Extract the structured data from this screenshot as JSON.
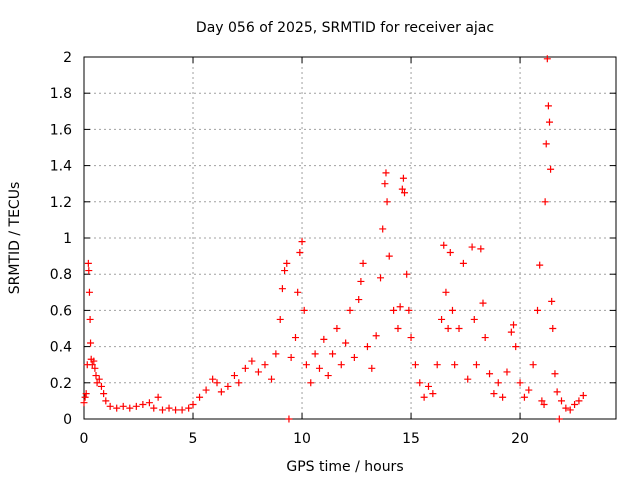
{
  "chart_data": {
    "type": "scatter",
    "title": "Day 056 of 2025, SRMTID for receiver ajac",
    "xlabel": "GPS time / hours",
    "ylabel": "SRMTID / TECUs",
    "xlim": [
      0,
      24.4
    ],
    "ylim": [
      0,
      2
    ],
    "x_ticks": [
      0,
      5,
      10,
      15,
      20
    ],
    "x_tick_labels": [
      "0",
      "5",
      "10",
      "15",
      "20"
    ],
    "y_ticks": [
      0,
      0.2,
      0.4,
      0.6,
      0.8,
      1,
      1.2,
      1.4,
      1.6,
      1.8,
      2
    ],
    "y_tick_labels": [
      "0",
      "0.2",
      "0.4",
      "0.6",
      "0.8",
      "1",
      "1.2",
      "1.4",
      "1.6",
      "1.8",
      "2"
    ],
    "grid": true,
    "marker": "+",
    "series": [
      {
        "name": "SRMTID",
        "color": "#ff0000",
        "points": [
          [
            0.0,
            0.09
          ],
          [
            0.05,
            0.12
          ],
          [
            0.1,
            0.14
          ],
          [
            0.15,
            0.3
          ],
          [
            0.2,
            0.86
          ],
          [
            0.22,
            0.82
          ],
          [
            0.25,
            0.7
          ],
          [
            0.28,
            0.55
          ],
          [
            0.3,
            0.42
          ],
          [
            0.33,
            0.33
          ],
          [
            0.38,
            0.3
          ],
          [
            0.45,
            0.32
          ],
          [
            0.5,
            0.28
          ],
          [
            0.55,
            0.24
          ],
          [
            0.6,
            0.2
          ],
          [
            0.7,
            0.22
          ],
          [
            0.8,
            0.18
          ],
          [
            0.9,
            0.14
          ],
          [
            1.0,
            0.1
          ],
          [
            1.2,
            0.07
          ],
          [
            1.5,
            0.06
          ],
          [
            1.8,
            0.07
          ],
          [
            2.1,
            0.06
          ],
          [
            2.4,
            0.07
          ],
          [
            2.7,
            0.08
          ],
          [
            3.0,
            0.09
          ],
          [
            3.2,
            0.06
          ],
          [
            3.4,
            0.12
          ],
          [
            3.6,
            0.05
          ],
          [
            3.9,
            0.06
          ],
          [
            4.2,
            0.05
          ],
          [
            4.5,
            0.05
          ],
          [
            4.8,
            0.06
          ],
          [
            5.0,
            0.08
          ],
          [
            5.3,
            0.12
          ],
          [
            5.6,
            0.16
          ],
          [
            5.9,
            0.22
          ],
          [
            6.1,
            0.2
          ],
          [
            6.3,
            0.15
          ],
          [
            6.6,
            0.18
          ],
          [
            6.9,
            0.24
          ],
          [
            7.1,
            0.2
          ],
          [
            7.4,
            0.28
          ],
          [
            7.7,
            0.32
          ],
          [
            8.0,
            0.26
          ],
          [
            8.3,
            0.3
          ],
          [
            8.6,
            0.22
          ],
          [
            8.8,
            0.36
          ],
          [
            9.0,
            0.55
          ],
          [
            9.1,
            0.72
          ],
          [
            9.2,
            0.82
          ],
          [
            9.3,
            0.86
          ],
          [
            9.4,
            0.0
          ],
          [
            9.5,
            0.34
          ],
          [
            9.7,
            0.45
          ],
          [
            9.8,
            0.7
          ],
          [
            9.9,
            0.92
          ],
          [
            10.0,
            0.98
          ],
          [
            10.1,
            0.6
          ],
          [
            10.2,
            0.3
          ],
          [
            10.4,
            0.2
          ],
          [
            10.6,
            0.36
          ],
          [
            10.8,
            0.28
          ],
          [
            11.0,
            0.44
          ],
          [
            11.2,
            0.24
          ],
          [
            11.4,
            0.36
          ],
          [
            11.6,
            0.5
          ],
          [
            11.8,
            0.3
          ],
          [
            12.0,
            0.42
          ],
          [
            12.2,
            0.6
          ],
          [
            12.4,
            0.34
          ],
          [
            12.6,
            0.66
          ],
          [
            12.7,
            0.76
          ],
          [
            12.8,
            0.86
          ],
          [
            13.0,
            0.4
          ],
          [
            13.2,
            0.28
          ],
          [
            13.4,
            0.46
          ],
          [
            13.6,
            0.78
          ],
          [
            13.7,
            1.05
          ],
          [
            13.8,
            1.3
          ],
          [
            13.85,
            1.36
          ],
          [
            13.9,
            1.2
          ],
          [
            14.0,
            0.9
          ],
          [
            14.2,
            0.6
          ],
          [
            14.4,
            0.5
          ],
          [
            14.5,
            0.62
          ],
          [
            14.6,
            1.27
          ],
          [
            14.65,
            1.33
          ],
          [
            14.7,
            1.25
          ],
          [
            14.8,
            0.8
          ],
          [
            14.9,
            0.6
          ],
          [
            15.0,
            0.45
          ],
          [
            15.2,
            0.3
          ],
          [
            15.4,
            0.2
          ],
          [
            15.6,
            0.12
          ],
          [
            15.8,
            0.18
          ],
          [
            16.0,
            0.14
          ],
          [
            16.2,
            0.3
          ],
          [
            16.4,
            0.55
          ],
          [
            16.5,
            0.96
          ],
          [
            16.6,
            0.7
          ],
          [
            16.7,
            0.5
          ],
          [
            16.8,
            0.92
          ],
          [
            16.9,
            0.6
          ],
          [
            17.0,
            0.3
          ],
          [
            17.2,
            0.5
          ],
          [
            17.4,
            0.86
          ],
          [
            17.6,
            0.22
          ],
          [
            17.8,
            0.95
          ],
          [
            17.9,
            0.55
          ],
          [
            18.0,
            0.3
          ],
          [
            18.2,
            0.94
          ],
          [
            18.3,
            0.64
          ],
          [
            18.4,
            0.45
          ],
          [
            18.6,
            0.25
          ],
          [
            18.8,
            0.14
          ],
          [
            19.0,
            0.2
          ],
          [
            19.2,
            0.12
          ],
          [
            19.4,
            0.26
          ],
          [
            19.6,
            0.48
          ],
          [
            19.7,
            0.52
          ],
          [
            19.8,
            0.4
          ],
          [
            20.0,
            0.2
          ],
          [
            20.2,
            0.12
          ],
          [
            20.4,
            0.16
          ],
          [
            20.6,
            0.3
          ],
          [
            20.8,
            0.6
          ],
          [
            20.9,
            0.85
          ],
          [
            21.0,
            0.1
          ],
          [
            21.1,
            0.08
          ],
          [
            21.15,
            1.2
          ],
          [
            21.2,
            1.52
          ],
          [
            21.25,
            1.99
          ],
          [
            21.3,
            1.73
          ],
          [
            21.35,
            1.64
          ],
          [
            21.4,
            1.38
          ],
          [
            21.45,
            0.65
          ],
          [
            21.5,
            0.5
          ],
          [
            21.6,
            0.25
          ],
          [
            21.7,
            0.15
          ],
          [
            21.8,
            0.0
          ],
          [
            21.9,
            0.1
          ],
          [
            22.1,
            0.06
          ],
          [
            22.3,
            0.05
          ],
          [
            22.5,
            0.08
          ],
          [
            22.7,
            0.1
          ],
          [
            22.9,
            0.13
          ]
        ]
      }
    ]
  }
}
